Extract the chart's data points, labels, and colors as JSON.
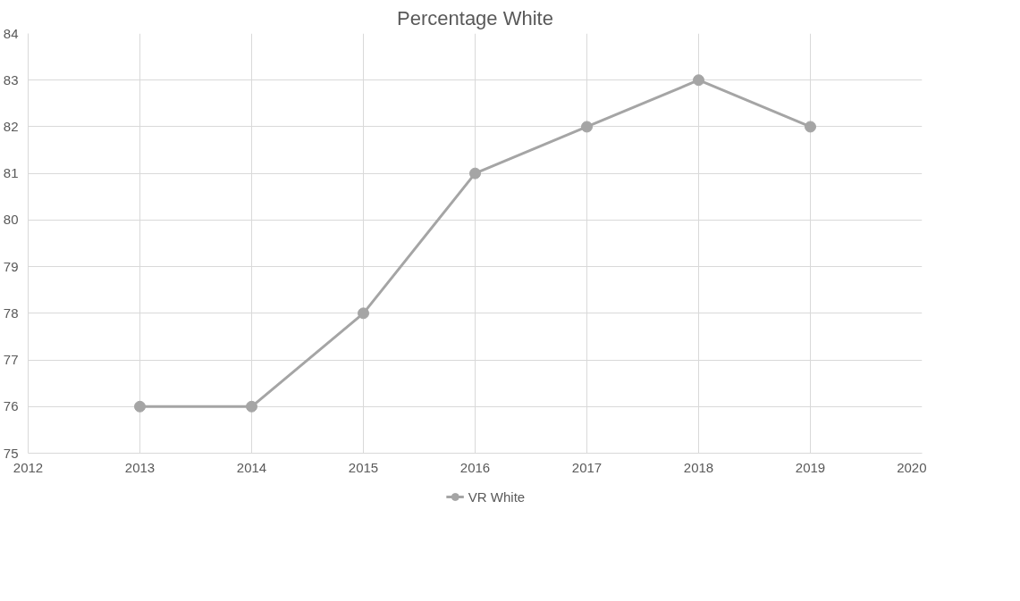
{
  "chart_data": {
    "type": "line",
    "title": "Percentage White",
    "x": [
      2013,
      2014,
      2015,
      2016,
      2017,
      2018,
      2019
    ],
    "series": [
      {
        "name": "VR White",
        "color": "#a5a5a5",
        "values": [
          76,
          76,
          78,
          81,
          82,
          83,
          82
        ]
      }
    ],
    "xlim": [
      2012,
      2020
    ],
    "xticks": [
      2012,
      2013,
      2014,
      2015,
      2016,
      2017,
      2018,
      2019,
      2020
    ],
    "ylim": [
      75,
      84
    ],
    "yticks": [
      75,
      76,
      77,
      78,
      79,
      80,
      81,
      82,
      83,
      84
    ],
    "grid": true,
    "legend": "bottom",
    "marker": "circle",
    "line_style": "solid"
  }
}
